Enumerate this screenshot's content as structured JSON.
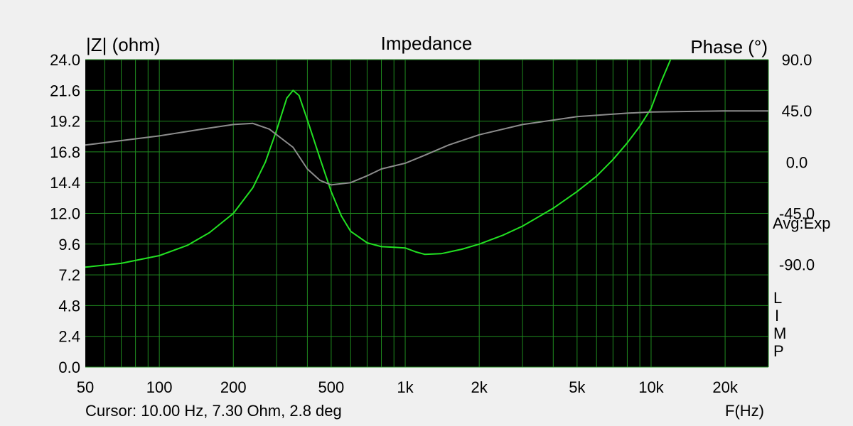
{
  "chart_data": {
    "type": "line",
    "title": "Impedance",
    "ylabel_left": "|Z| (ohm)",
    "ylabel_right": "Phase (°)",
    "xlabel": "F(Hz)",
    "x_scale": "log",
    "xlim": [
      50,
      30000
    ],
    "ylim_left": [
      0,
      24
    ],
    "ylim_right": [
      -180,
      90
    ],
    "left_ticks": [
      "24.0",
      "21.6",
      "19.2",
      "16.8",
      "14.4",
      "12.0",
      "9.6",
      "7.2",
      "4.8",
      "2.4",
      "0.0"
    ],
    "right_ticks": [
      "90.0",
      "45.0",
      "0.0",
      "-45.0",
      "-90.0"
    ],
    "x_tick_labels": [
      {
        "value": 50,
        "label": "50"
      },
      {
        "value": 100,
        "label": "100"
      },
      {
        "value": 200,
        "label": "200"
      },
      {
        "value": 500,
        "label": "500"
      },
      {
        "value": 1000,
        "label": "1k"
      },
      {
        "value": 2000,
        "label": "2k"
      },
      {
        "value": 5000,
        "label": "5k"
      },
      {
        "value": 10000,
        "label": "10k"
      },
      {
        "value": 20000,
        "label": "20k"
      }
    ],
    "grid": true,
    "series": [
      {
        "axis": "left",
        "color": "#22e022",
        "points": [
          [
            50,
            7.8
          ],
          [
            70,
            8.1
          ],
          [
            100,
            8.7
          ],
          [
            130,
            9.5
          ],
          [
            160,
            10.5
          ],
          [
            200,
            12.0
          ],
          [
            240,
            14.0
          ],
          [
            270,
            16.0
          ],
          [
            300,
            18.5
          ],
          [
            330,
            21.0
          ],
          [
            350,
            21.6
          ],
          [
            370,
            21.2
          ],
          [
            400,
            19.3
          ],
          [
            450,
            16.3
          ],
          [
            500,
            13.7
          ],
          [
            550,
            11.8
          ],
          [
            600,
            10.6
          ],
          [
            700,
            9.7
          ],
          [
            800,
            9.4
          ],
          [
            900,
            9.35
          ],
          [
            1000,
            9.3
          ],
          [
            1100,
            9.0
          ],
          [
            1200,
            8.8
          ],
          [
            1400,
            8.85
          ],
          [
            1700,
            9.2
          ],
          [
            2000,
            9.6
          ],
          [
            2500,
            10.3
          ],
          [
            3000,
            11.0
          ],
          [
            4000,
            12.4
          ],
          [
            5000,
            13.7
          ],
          [
            6000,
            14.9
          ],
          [
            7000,
            16.2
          ],
          [
            8000,
            17.5
          ],
          [
            9000,
            18.8
          ],
          [
            10000,
            20.2
          ],
          [
            11000,
            22.3
          ],
          [
            12000,
            24.0
          ]
        ]
      },
      {
        "axis": "right",
        "color": "#8c8c8c",
        "points": [
          [
            50,
            15.0
          ],
          [
            100,
            23.0
          ],
          [
            150,
            29.0
          ],
          [
            200,
            33.0
          ],
          [
            240,
            34.0
          ],
          [
            280,
            29.0
          ],
          [
            350,
            13.0
          ],
          [
            400,
            -6.0
          ],
          [
            450,
            -16.0
          ],
          [
            500,
            -20.0
          ],
          [
            600,
            -18.0
          ],
          [
            700,
            -12.0
          ],
          [
            800,
            -6.0
          ],
          [
            1000,
            -1.0
          ],
          [
            1200,
            6.0
          ],
          [
            1500,
            15.0
          ],
          [
            2000,
            24.0
          ],
          [
            3000,
            33.0
          ],
          [
            5000,
            40.0
          ],
          [
            8000,
            43.0
          ],
          [
            10000,
            44.0
          ],
          [
            20000,
            45.0
          ],
          [
            30000,
            45.0
          ]
        ]
      }
    ]
  },
  "side_labels": {
    "avg": "Avg:Exp",
    "limp": [
      "L",
      "I",
      "M",
      "P"
    ]
  },
  "cursor_text": "Cursor: 10.00 Hz, 7.30 Ohm, 2.8 deg"
}
